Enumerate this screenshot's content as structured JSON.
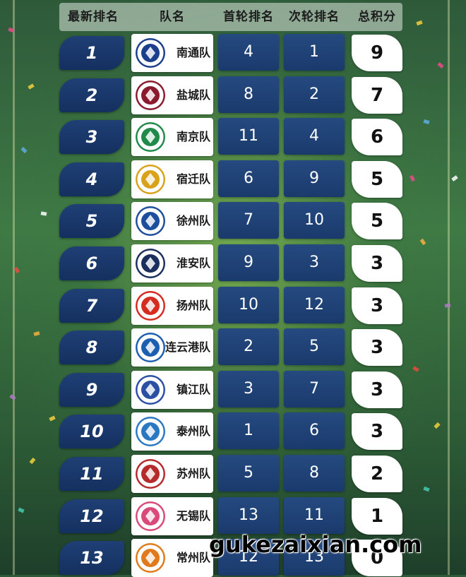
{
  "header": {
    "col_rank": "最新排名",
    "col_team": "队名",
    "col_round1": "首轮排名",
    "col_round2": "次轮排名",
    "col_total": "总积分"
  },
  "rows": [
    {
      "rank": "1",
      "team": "南通队",
      "round1": "4",
      "round2": "1",
      "total": "9",
      "logo_color": "#1c3f8c"
    },
    {
      "rank": "2",
      "team": "盐城队",
      "round1": "8",
      "round2": "2",
      "total": "7",
      "logo_color": "#8b1a2e"
    },
    {
      "rank": "3",
      "team": "南京队",
      "round1": "11",
      "round2": "4",
      "total": "6",
      "logo_color": "#1f8a4a"
    },
    {
      "rank": "4",
      "team": "宿迁队",
      "round1": "6",
      "round2": "9",
      "total": "5",
      "logo_color": "#d9a21b"
    },
    {
      "rank": "5",
      "team": "徐州队",
      "round1": "7",
      "round2": "10",
      "total": "5",
      "logo_color": "#1d4e9e"
    },
    {
      "rank": "6",
      "team": "淮安队",
      "round1": "9",
      "round2": "3",
      "total": "3",
      "logo_color": "#1b2f5e"
    },
    {
      "rank": "7",
      "team": "扬州队",
      "round1": "10",
      "round2": "12",
      "total": "3",
      "logo_color": "#d62b1f"
    },
    {
      "rank": "8",
      "team": "连云港队",
      "round1": "2",
      "round2": "5",
      "total": "3",
      "logo_color": "#1c5fb0"
    },
    {
      "rank": "9",
      "team": "镇江队",
      "round1": "3",
      "round2": "7",
      "total": "3",
      "logo_color": "#2a4fa3"
    },
    {
      "rank": "10",
      "team": "泰州队",
      "round1": "1",
      "round2": "6",
      "total": "3",
      "logo_color": "#2b78c2"
    },
    {
      "rank": "11",
      "team": "苏州队",
      "round1": "5",
      "round2": "8",
      "total": "2",
      "logo_color": "#b52a2a"
    },
    {
      "rank": "12",
      "team": "无锡队",
      "round1": "13",
      "round2": "11",
      "total": "1",
      "logo_color": "#d94a7a"
    },
    {
      "rank": "13",
      "team": "常州队",
      "round1": "12",
      "round2": "13",
      "total": "0",
      "logo_color": "#e07a1c"
    }
  ],
  "watermark": "gukezaixian.com",
  "colors": {
    "rank_bg": "#1f3f75",
    "cell_bg": "#254a80",
    "total_bg": "#ffffff",
    "field_green": "#3f7a45"
  }
}
